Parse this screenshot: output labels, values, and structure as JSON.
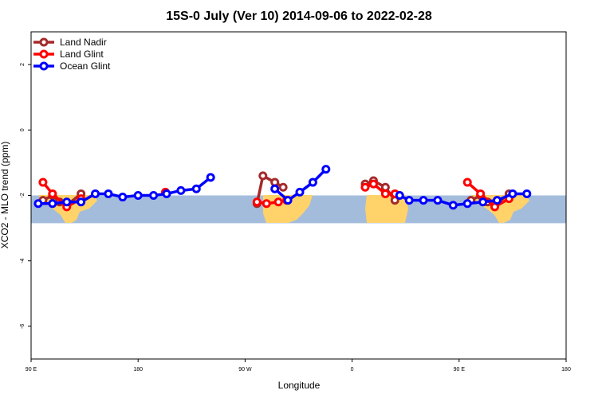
{
  "chart_data": {
    "type": "line",
    "title": "15S-0 July (Ver 10)   2014-09-06 to 2022-02-28",
    "xlabel": "Longitude",
    "ylabel": "XCO2 - MLO trend (ppm)",
    "xlim": [
      90,
      450
    ],
    "ylim": [
      -7,
      3
    ],
    "x_ticks": [
      {
        "value": 90,
        "label": "90 E"
      },
      {
        "value": 180,
        "label": "180"
      },
      {
        "value": 270,
        "label": "90 W"
      },
      {
        "value": 360,
        "label": "0"
      },
      {
        "value": 450,
        "label": "90 E"
      },
      {
        "value": 540,
        "label": "180"
      }
    ],
    "y_ticks": [
      2,
      0,
      -2,
      -4,
      -6
    ],
    "latitude_band": {
      "y_top": -2.0,
      "y_bottom": -2.85
    },
    "legend_position": "top-left",
    "series": [
      {
        "name": "Land Nadir",
        "color": "#a52a2a",
        "segments": [
          [
            [
              100,
              -2.15
            ],
            [
              108,
              -2.0
            ],
            [
              114,
              -2.2
            ],
            [
              120,
              -2.3
            ],
            [
              132,
              -1.95
            ]
          ],
          [
            [
              280,
              -2.25
            ],
            [
              285,
              -1.4
            ],
            [
              295,
              -1.6
            ],
            [
              302,
              -1.75
            ]
          ],
          [
            [
              371,
              -1.65
            ],
            [
              378,
              -1.55
            ],
            [
              388,
              -1.75
            ],
            [
              396,
              -2.15
            ]
          ],
          [
            [
              460,
              -2.15
            ],
            [
              468,
              -2.0
            ],
            [
              474,
              -2.2
            ],
            [
              480,
              -2.3
            ],
            [
              492,
              -1.95
            ]
          ]
        ]
      },
      {
        "name": "Land Glint",
        "color": "#ff0000",
        "segments": [
          [
            [
              100,
              -1.6
            ],
            [
              108,
              -1.95
            ],
            [
              120,
              -2.35
            ],
            [
              132,
              -2.1
            ]
          ],
          [
            [
              203,
              -1.9
            ]
          ],
          [
            [
              280,
              -2.2
            ],
            [
              288,
              -2.25
            ],
            [
              298,
              -2.2
            ],
            [
              305,
              -2.15
            ]
          ],
          [
            [
              371,
              -1.75
            ],
            [
              378,
              -1.65
            ],
            [
              388,
              -1.95
            ],
            [
              396,
              -1.95
            ]
          ],
          [
            [
              457,
              -1.6
            ],
            [
              468,
              -1.95
            ],
            [
              480,
              -2.35
            ],
            [
              492,
              -2.1
            ]
          ]
        ]
      },
      {
        "name": "Ocean Glint",
        "color": "#0000ff",
        "segments": [
          [
            [
              96,
              -2.25
            ],
            [
              108,
              -2.25
            ],
            [
              120,
              -2.2
            ],
            [
              132,
              -2.2
            ],
            [
              144,
              -1.95
            ],
            [
              155,
              -1.95
            ],
            [
              167,
              -2.05
            ],
            [
              180,
              -2.0
            ],
            [
              193,
              -2.0
            ],
            [
              204,
              -1.95
            ],
            [
              216,
              -1.85
            ],
            [
              229,
              -1.8
            ],
            [
              241,
              -1.45
            ]
          ],
          [
            [
              295,
              -1.8
            ],
            [
              306,
              -2.15
            ],
            [
              316,
              -1.9
            ],
            [
              327,
              -1.6
            ],
            [
              338,
              -1.2
            ]
          ],
          [
            [
              400,
              -2.0
            ],
            [
              408,
              -2.15
            ],
            [
              420,
              -2.15
            ],
            [
              432,
              -2.15
            ],
            [
              445,
              -2.3
            ],
            [
              457,
              -2.25
            ],
            [
              470,
              -2.2
            ],
            [
              482,
              -2.15
            ],
            [
              495,
              -1.95
            ],
            [
              507,
              -1.95
            ]
          ]
        ]
      }
    ]
  }
}
